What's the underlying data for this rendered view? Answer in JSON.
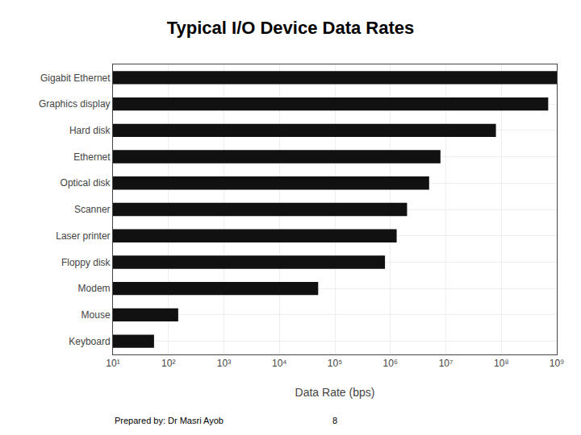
{
  "chart_data": {
    "type": "bar",
    "orientation": "horizontal",
    "title": "Typical I/O Device Data Rates",
    "xlabel": "Data Rate (bps)",
    "categories": [
      "Gigabit Ethernet",
      "Graphics display",
      "Hard disk",
      "Ethernet",
      "Optical disk",
      "Scanner",
      "Laser printer",
      "Floppy disk",
      "Modem",
      "Mouse",
      "Keyboard"
    ],
    "values": [
      1000000000.0,
      700000000.0,
      80000000.0,
      8000000.0,
      5000000.0,
      2000000.0,
      1300000.0,
      800000.0,
      50000.0,
      150.0,
      55
    ],
    "color": "#111111",
    "log": "x",
    "xlim": [
      10,
      1000000000.0
    ],
    "xticks": [
      {
        "value": 10,
        "label": "10¹"
      },
      {
        "value": 100,
        "label": "10²"
      },
      {
        "value": 1000,
        "label": "10³"
      },
      {
        "value": 10000,
        "label": "10⁴"
      },
      {
        "value": 100000,
        "label": "10⁵"
      },
      {
        "value": 1000000,
        "label": "10⁶"
      },
      {
        "value": 10000000,
        "label": "10⁷"
      },
      {
        "value": 100000000,
        "label": "10⁸"
      },
      {
        "value": 1000000000,
        "label": "10⁹"
      }
    ],
    "grid": true,
    "annotations": [
      "Prepared by: Dr Masri Ayob",
      "8"
    ]
  }
}
